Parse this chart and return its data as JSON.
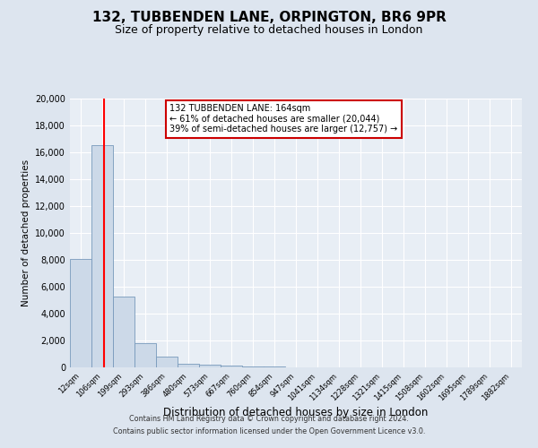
{
  "title": "132, TUBBENDEN LANE, ORPINGTON, BR6 9PR",
  "subtitle": "Size of property relative to detached houses in London",
  "xlabel": "Distribution of detached houses by size in London",
  "ylabel": "Number of detached properties",
  "bar_labels": [
    "12sqm",
    "106sqm",
    "199sqm",
    "293sqm",
    "386sqm",
    "480sqm",
    "573sqm",
    "667sqm",
    "760sqm",
    "854sqm",
    "947sqm",
    "1041sqm",
    "1134sqm",
    "1228sqm",
    "1321sqm",
    "1415sqm",
    "1508sqm",
    "1602sqm",
    "1695sqm",
    "1789sqm",
    "1882sqm"
  ],
  "bar_values": [
    8100,
    16500,
    5300,
    1800,
    800,
    300,
    170,
    110,
    70,
    40,
    0,
    0,
    0,
    0,
    0,
    0,
    0,
    0,
    0,
    0,
    0
  ],
  "bar_color": "#ccd9e8",
  "bar_edge_color": "#7799bb",
  "vline_x": 1.58,
  "vline_color": "red",
  "vline_linewidth": 1.5,
  "ylim": [
    0,
    20000
  ],
  "yticks": [
    0,
    2000,
    4000,
    6000,
    8000,
    10000,
    12000,
    14000,
    16000,
    18000,
    20000
  ],
  "annotation_title": "132 TUBBENDEN LANE: 164sqm",
  "annotation_line1": "← 61% of detached houses are smaller (20,044)",
  "annotation_line2": "39% of semi-detached houses are larger (12,757) →",
  "annotation_box_color": "#ffffff",
  "annotation_box_edge": "#cc0000",
  "footer_line1": "Contains HM Land Registry data © Crown copyright and database right 2024.",
  "footer_line2": "Contains public sector information licensed under the Open Government Licence v3.0.",
  "background_color": "#dde5ef",
  "plot_background": "#e8eef5",
  "grid_color": "#ffffff",
  "title_fontsize": 11,
  "subtitle_fontsize": 9,
  "xlabel_fontsize": 8.5,
  "ylabel_fontsize": 7.5,
  "footer_fontsize": 5.8
}
